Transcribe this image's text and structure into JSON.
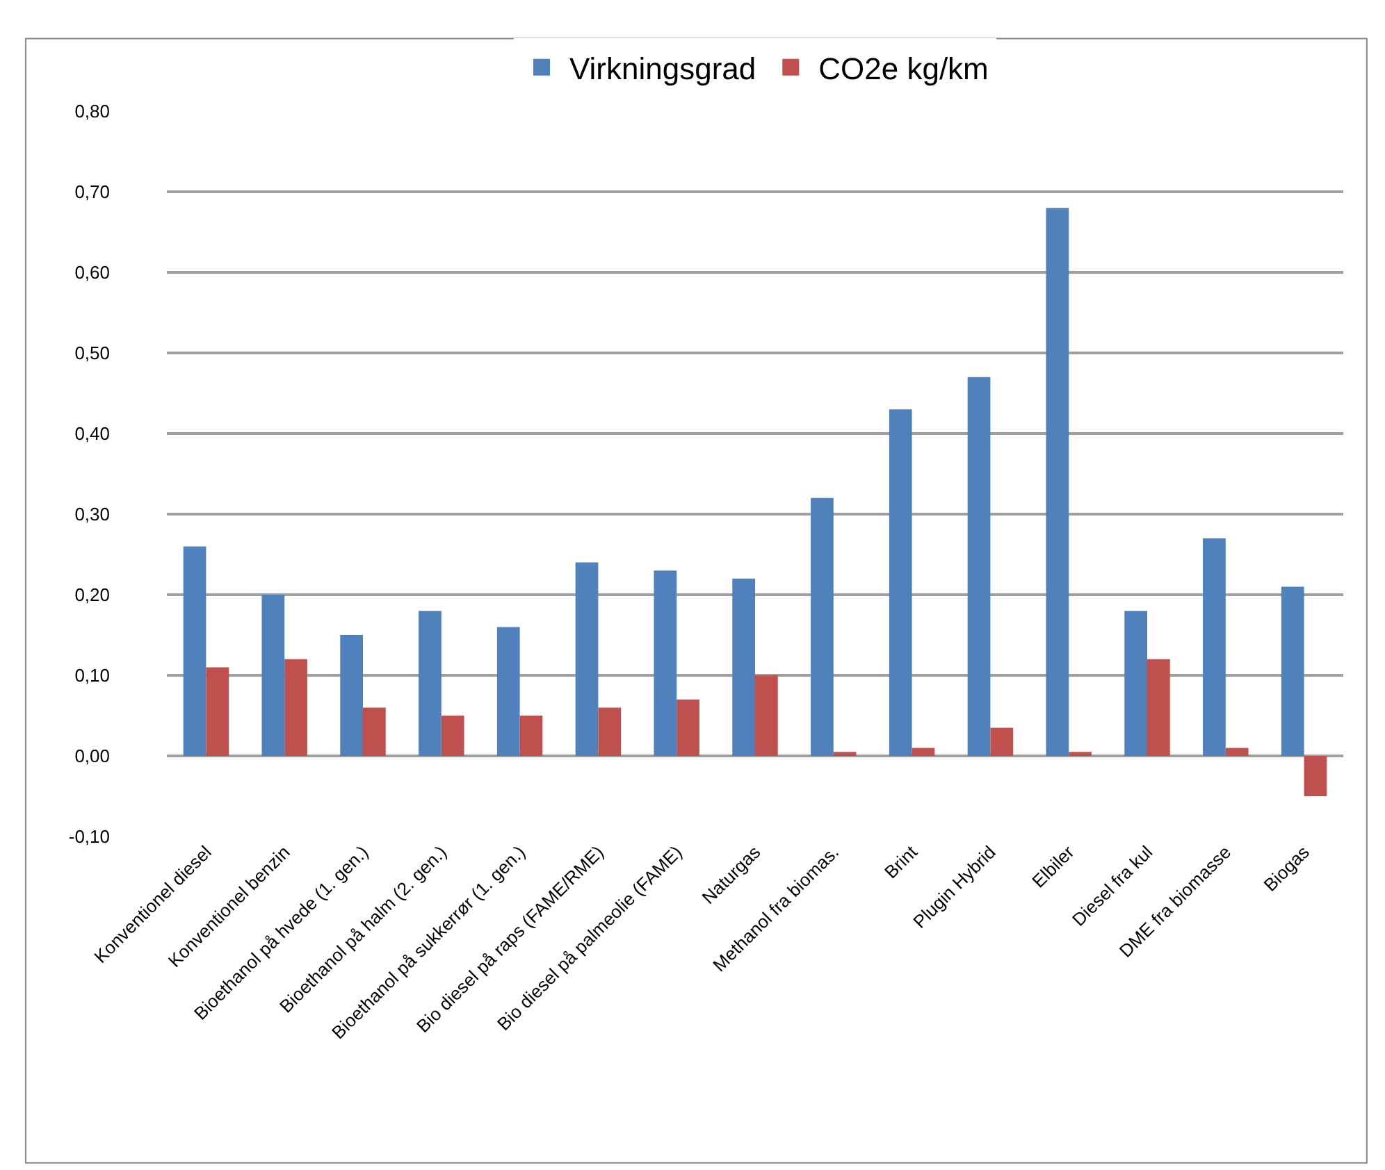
{
  "chart_data": {
    "type": "bar",
    "categories": [
      "Konventionel diesel",
      "Konventionel benzin",
      "Bioethanol på hvede (1. gen.)",
      "Bioethanol på halm (2. gen.)",
      "Bioethanol på sukkerrør (1. gen.)",
      "Bio diesel på raps (FAME/RME)",
      "Bio diesel på palmeolie (FAME)",
      "Naturgas",
      "Methanol fra biomas.",
      "Brint",
      "Plugin Hybrid",
      "Elbiler",
      "Diesel fra kul",
      "DME fra biomasse",
      "Biogas"
    ],
    "series": [
      {
        "name": "Virkningsgrad",
        "color": "#4f81bd",
        "values": [
          0.26,
          0.2,
          0.15,
          0.18,
          0.16,
          0.24,
          0.23,
          0.22,
          0.32,
          0.43,
          0.47,
          0.68,
          0.18,
          0.27,
          0.21
        ]
      },
      {
        "name": "CO2e kg/km",
        "color": "#c0504d",
        "values": [
          0.11,
          0.12,
          0.06,
          0.05,
          0.05,
          0.06,
          0.07,
          0.1,
          0.005,
          0.01,
          0.035,
          0.005,
          0.12,
          0.01,
          -0.05
        ]
      }
    ],
    "ylim": [
      -0.1,
      0.8
    ],
    "yticks": [
      {
        "value": -0.1,
        "label": "-0,10"
      },
      {
        "value": 0,
        "label": "0,00"
      },
      {
        "value": 0.1,
        "label": "0,10"
      },
      {
        "value": 0.2,
        "label": "0,20"
      },
      {
        "value": 0.3,
        "label": "0,30"
      },
      {
        "value": 0.4,
        "label": "0,40"
      },
      {
        "value": 0.5,
        "label": "0,50"
      },
      {
        "value": 0.6,
        "label": "0,60"
      },
      {
        "value": 0.7,
        "label": "0,70"
      },
      {
        "value": 0.8,
        "label": "0,80"
      }
    ],
    "grid": "y",
    "legend": "top"
  }
}
